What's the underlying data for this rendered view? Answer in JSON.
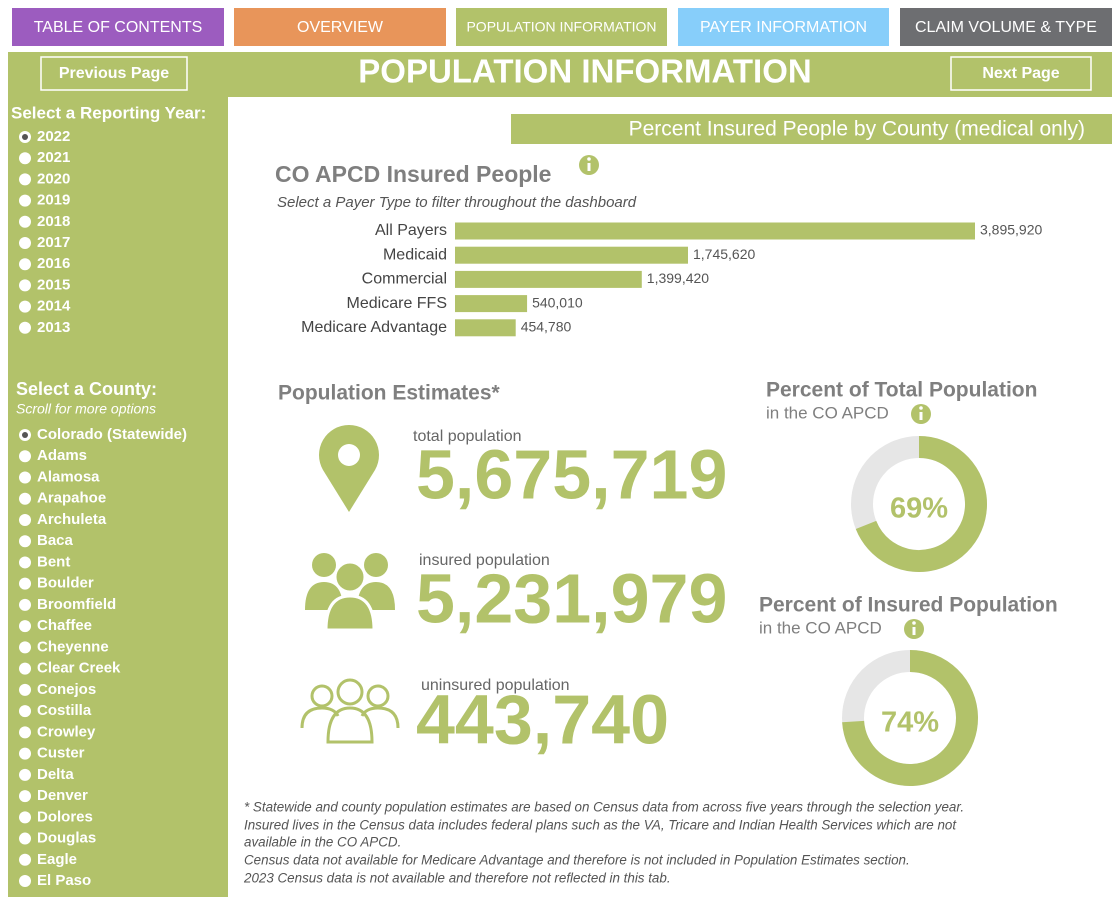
{
  "nav": [
    "TABLE OF CONTENTS",
    "OVERVIEW",
    "POPULATION INFORMATION",
    "PAYER INFORMATION",
    "CLAIM VOLUME & TYPE"
  ],
  "header": {
    "previous": "Previous Page",
    "title": "POPULATION INFORMATION",
    "next": "Next Page"
  },
  "sidebar": {
    "year_label": "Select a Reporting Year:",
    "years": [
      "2022",
      "2021",
      "2020",
      "2019",
      "2018",
      "2017",
      "2016",
      "2015",
      "2014",
      "2013"
    ],
    "county_label": "Select a County:",
    "county_hint": "Scroll for more options",
    "counties": [
      "Colorado (Statewide)",
      "Adams",
      "Alamosa",
      "Arapahoe",
      "Archuleta",
      "Baca",
      "Bent",
      "Boulder",
      "Broomfield",
      "Chaffee",
      "Cheyenne",
      "Clear Creek",
      "Conejos",
      "Costilla",
      "Crowley",
      "Custer",
      "Delta",
      "Denver",
      "Dolores",
      "Douglas",
      "Eagle",
      "El Paso"
    ]
  },
  "section_title": "Percent Insured People by County (medical only)",
  "chart_data": {
    "type": "bar",
    "title": "CO APCD Insured People",
    "subtitle": "Select a Payer Type to filter throughout the dashboard",
    "categories": [
      "All Payers",
      "Medicaid",
      "Commercial",
      "Medicare FFS",
      "Medicare Advantage"
    ],
    "values": [
      3895920,
      1745620,
      1399420,
      540010,
      454780
    ],
    "value_labels": [
      "3,895,920",
      "1,745,620",
      "1,399,420",
      "540,010",
      "454,780"
    ],
    "color": "#b2c26a"
  },
  "estimates": {
    "title": "Population Estimates*",
    "items": [
      {
        "label": "total population",
        "value": "5,675,719"
      },
      {
        "label": "insured population",
        "value": "5,231,979"
      },
      {
        "label": "uninsured population",
        "value": "443,740"
      }
    ]
  },
  "donuts": [
    {
      "title": "Percent of Total Population",
      "subtitle": "in the CO APCD",
      "value": 69,
      "value_label": "69%"
    },
    {
      "title": "Percent of Insured Population",
      "subtitle": "in the CO APCD",
      "value": 74,
      "value_label": "74%"
    }
  ],
  "footnotes": [
    "* Statewide and county population estimates are based on Census data from across five years through the selection year.",
    "Insured lives in the Census data includes federal plans such as the VA, Tricare and Indian Health Services which are not",
    "available in the CO APCD.",
    "Census data not available for Medicare Advantage and therefore is not included in Population Estimates section.",
    "2023 Census data is not available and therefore not reflected in this tab."
  ]
}
